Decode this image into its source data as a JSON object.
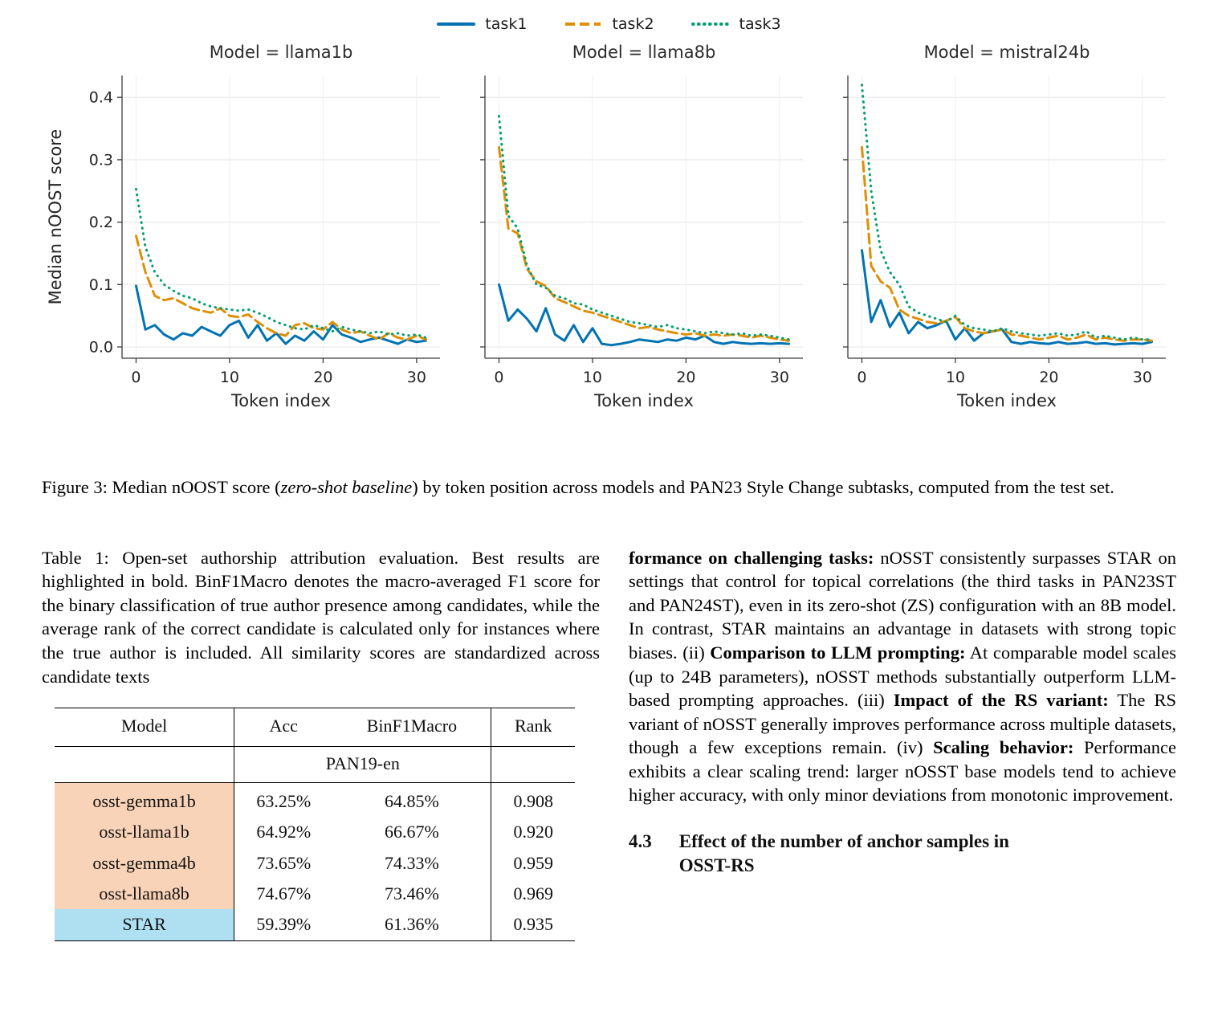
{
  "figure": {
    "legend": [
      {
        "label": "task1",
        "color": "#0173b2",
        "dash": "solid"
      },
      {
        "label": "task2",
        "color": "#de8f05",
        "dash": "dashed"
      },
      {
        "label": "task3",
        "color": "#029e73",
        "dash": "dotted"
      }
    ],
    "caption_segments": [
      {
        "t": "Figure 3: Median nOOST score ("
      },
      {
        "t": "zero-shot baseline",
        "i": true
      },
      {
        "t": ") by token position across models and PAN23 Style Change subtasks, computed from the test set."
      }
    ]
  },
  "chart_data": [
    {
      "type": "line",
      "title": "Model = llama1b",
      "xlabel": "Token index",
      "ylabel": "Median nOOST score",
      "xlim": [
        -1.5,
        32.5
      ],
      "ylim": [
        -0.018,
        0.435
      ],
      "xticks": [
        0,
        10,
        20,
        30
      ],
      "yticks": [
        0,
        0.1,
        0.2,
        0.3,
        0.4
      ],
      "x": [
        0,
        1,
        2,
        3,
        4,
        5,
        6,
        7,
        8,
        9,
        10,
        11,
        12,
        13,
        14,
        15,
        16,
        17,
        18,
        19,
        20,
        21,
        22,
        23,
        24,
        25,
        26,
        27,
        28,
        29,
        30,
        31
      ],
      "series": [
        {
          "name": "task1",
          "color": "#0173b2",
          "style": "solid",
          "values": [
            0.098,
            0.028,
            0.035,
            0.02,
            0.012,
            0.022,
            0.018,
            0.032,
            0.025,
            0.018,
            0.035,
            0.042,
            0.015,
            0.035,
            0.01,
            0.022,
            0.005,
            0.018,
            0.01,
            0.025,
            0.012,
            0.035,
            0.02,
            0.015,
            0.008,
            0.012,
            0.015,
            0.01,
            0.005,
            0.012,
            0.008,
            0.01
          ]
        },
        {
          "name": "task2",
          "color": "#de8f05",
          "style": "dashed",
          "values": [
            0.178,
            0.12,
            0.082,
            0.075,
            0.078,
            0.07,
            0.062,
            0.058,
            0.055,
            0.062,
            0.05,
            0.048,
            0.052,
            0.04,
            0.03,
            0.022,
            0.018,
            0.035,
            0.038,
            0.03,
            0.028,
            0.04,
            0.028,
            0.022,
            0.025,
            0.018,
            0.012,
            0.022,
            0.015,
            0.012,
            0.018,
            0.012
          ]
        },
        {
          "name": "task3",
          "color": "#029e73",
          "style": "dotted",
          "values": [
            0.253,
            0.16,
            0.12,
            0.1,
            0.09,
            0.082,
            0.078,
            0.07,
            0.065,
            0.062,
            0.06,
            0.058,
            0.06,
            0.055,
            0.048,
            0.04,
            0.035,
            0.03,
            0.028,
            0.035,
            0.03,
            0.025,
            0.032,
            0.028,
            0.025,
            0.022,
            0.025,
            0.02,
            0.022,
            0.018,
            0.02,
            0.015
          ]
        }
      ]
    },
    {
      "type": "line",
      "title": "Model = llama8b",
      "xlabel": "Token index",
      "ylabel": "Median nOOST score",
      "xlim": [
        -1.5,
        32.5
      ],
      "ylim": [
        -0.018,
        0.435
      ],
      "xticks": [
        0,
        10,
        20,
        30
      ],
      "yticks": [
        0,
        0.1,
        0.2,
        0.3,
        0.4
      ],
      "x": [
        0,
        1,
        2,
        3,
        4,
        5,
        6,
        7,
        8,
        9,
        10,
        11,
        12,
        13,
        14,
        15,
        16,
        17,
        18,
        19,
        20,
        21,
        22,
        23,
        24,
        25,
        26,
        27,
        28,
        29,
        30,
        31
      ],
      "series": [
        {
          "name": "task1",
          "color": "#0173b2",
          "style": "solid",
          "values": [
            0.1,
            0.042,
            0.06,
            0.045,
            0.025,
            0.062,
            0.02,
            0.01,
            0.035,
            0.008,
            0.03,
            0.005,
            0.003,
            0.005,
            0.008,
            0.012,
            0.01,
            0.008,
            0.012,
            0.01,
            0.015,
            0.012,
            0.018,
            0.008,
            0.005,
            0.008,
            0.006,
            0.005,
            0.006,
            0.005,
            0.006,
            0.005
          ]
        },
        {
          "name": "task2",
          "color": "#de8f05",
          "style": "dashed",
          "values": [
            0.32,
            0.19,
            0.182,
            0.125,
            0.105,
            0.098,
            0.078,
            0.072,
            0.065,
            0.058,
            0.055,
            0.05,
            0.045,
            0.04,
            0.035,
            0.03,
            0.032,
            0.028,
            0.025,
            0.022,
            0.02,
            0.022,
            0.018,
            0.02,
            0.018,
            0.02,
            0.018,
            0.015,
            0.018,
            0.015,
            0.012,
            0.01
          ]
        },
        {
          "name": "task3",
          "color": "#029e73",
          "style": "dotted",
          "values": [
            0.37,
            0.21,
            0.19,
            0.13,
            0.1,
            0.095,
            0.082,
            0.078,
            0.07,
            0.068,
            0.06,
            0.055,
            0.05,
            0.045,
            0.04,
            0.038,
            0.035,
            0.032,
            0.035,
            0.03,
            0.028,
            0.025,
            0.022,
            0.025,
            0.022,
            0.02,
            0.022,
            0.018,
            0.02,
            0.018,
            0.015,
            0.012
          ]
        }
      ]
    },
    {
      "type": "line",
      "title": "Model = mistral24b",
      "xlabel": "Token index",
      "ylabel": "Median nOOST score",
      "xlim": [
        -1.5,
        32.5
      ],
      "ylim": [
        -0.018,
        0.435
      ],
      "xticks": [
        0,
        10,
        20,
        30
      ],
      "yticks": [
        0,
        0.1,
        0.2,
        0.3,
        0.4
      ],
      "x": [
        0,
        1,
        2,
        3,
        4,
        5,
        6,
        7,
        8,
        9,
        10,
        11,
        12,
        13,
        14,
        15,
        16,
        17,
        18,
        19,
        20,
        21,
        22,
        23,
        24,
        25,
        26,
        27,
        28,
        29,
        30,
        31
      ],
      "series": [
        {
          "name": "task1",
          "color": "#0173b2",
          "style": "solid",
          "values": [
            0.155,
            0.04,
            0.075,
            0.032,
            0.055,
            0.022,
            0.04,
            0.03,
            0.035,
            0.042,
            0.012,
            0.03,
            0.01,
            0.022,
            0.025,
            0.028,
            0.008,
            0.005,
            0.008,
            0.006,
            0.005,
            0.008,
            0.005,
            0.006,
            0.008,
            0.005,
            0.006,
            0.004,
            0.005,
            0.006,
            0.005,
            0.008
          ]
        },
        {
          "name": "task2",
          "color": "#de8f05",
          "style": "dashed",
          "values": [
            0.32,
            0.13,
            0.105,
            0.095,
            0.06,
            0.05,
            0.045,
            0.04,
            0.038,
            0.042,
            0.048,
            0.03,
            0.025,
            0.022,
            0.025,
            0.028,
            0.02,
            0.018,
            0.015,
            0.012,
            0.015,
            0.018,
            0.012,
            0.015,
            0.02,
            0.012,
            0.015,
            0.012,
            0.01,
            0.012,
            0.012,
            0.01
          ]
        },
        {
          "name": "task3",
          "color": "#029e73",
          "style": "dotted",
          "values": [
            0.42,
            0.25,
            0.155,
            0.12,
            0.1,
            0.065,
            0.055,
            0.05,
            0.045,
            0.04,
            0.05,
            0.035,
            0.03,
            0.028,
            0.025,
            0.03,
            0.025,
            0.022,
            0.02,
            0.018,
            0.02,
            0.022,
            0.018,
            0.02,
            0.025,
            0.015,
            0.018,
            0.015,
            0.012,
            0.015,
            0.012,
            0.012
          ]
        }
      ]
    }
  ],
  "table": {
    "caption": "Table 1: Open-set authorship attribution evaluation. Best results are highlighted in bold. BinF1Macro denotes the macro-averaged F1 score for the binary classification of true author presence among candidates, while the average rank of the correct candidate is calculated only for instances where the true author is included. All similarity scores are standardized across candidate texts",
    "headers": [
      "Model",
      "Acc",
      "BinF1Macro",
      "Rank"
    ],
    "group_header": "PAN19-en",
    "rows": [
      {
        "model": "osst-gemma1b",
        "acc": "63.25%",
        "binf1": "64.85%",
        "rank": "0.908"
      },
      {
        "model": "osst-llama1b",
        "acc": "64.92%",
        "binf1": "66.67%",
        "rank": "0.920"
      },
      {
        "model": "osst-gemma4b",
        "acc": "73.65%",
        "binf1": "74.33%",
        "rank": "0.959"
      },
      {
        "model": "osst-llama8b",
        "acc": "74.67%",
        "binf1": "73.46%",
        "rank": "0.969"
      },
      {
        "model": "STAR",
        "acc": "59.39%",
        "binf1": "61.36%",
        "rank": "0.935"
      }
    ],
    "highlight_osst": "#f8d3b8",
    "highlight_star": "#aee0f2"
  },
  "right_column": {
    "paragraph_segments": [
      {
        "t": "formance on challenging tasks:",
        "b": true
      },
      {
        "t": " nOSST consistently surpasses STAR on settings that control for topical correlations (the third tasks in PAN23ST and PAN24ST), even in its zero-shot (ZS) configuration with an 8B model. In contrast, STAR maintains an advantage in datasets with strong topic biases. (ii) "
      },
      {
        "t": "Comparison to LLM prompting:",
        "b": true
      },
      {
        "t": " At comparable model scales (up to 24B parameters), nOSST methods substantially outperform LLM-based prompting approaches. (iii) "
      },
      {
        "t": "Impact of the RS variant:",
        "b": true
      },
      {
        "t": " The RS variant of nOSST generally improves performance across multiple datasets, though a few exceptions remain. (iv) "
      },
      {
        "t": "Scaling behavior:",
        "b": true
      },
      {
        "t": " Performance exhibits a clear scaling trend: larger nOSST base models tend to achieve higher accuracy, with only minor deviations from monotonic improvement."
      }
    ],
    "section": {
      "number": "4.3",
      "title_line1": "Effect of the number of anchor samples in",
      "title_line2": "OSST-RS"
    }
  }
}
